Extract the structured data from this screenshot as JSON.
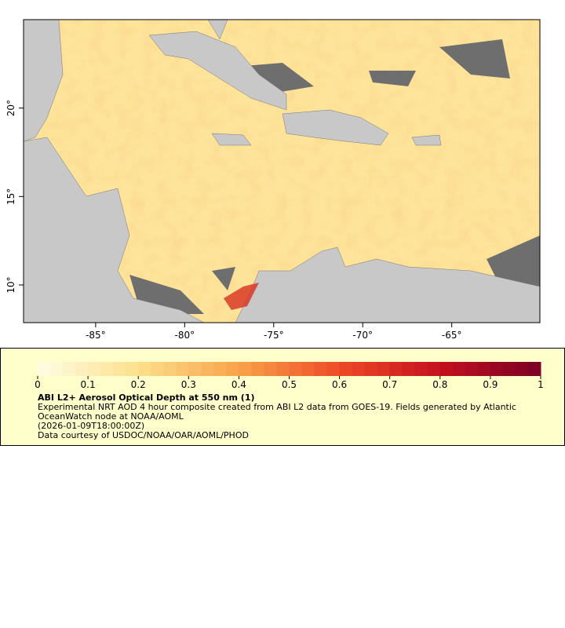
{
  "map": {
    "xlim": [
      -89.05,
      -60.05
    ],
    "ylim": [
      7.87,
      25.0
    ],
    "xticks": [
      {
        "value": -85,
        "label": "-85°"
      },
      {
        "value": -80,
        "label": "-80°"
      },
      {
        "value": -75,
        "label": "-75°"
      },
      {
        "value": -70,
        "label": "-70°"
      },
      {
        "value": -65,
        "label": "-65°"
      }
    ],
    "yticks": [
      {
        "value": 10,
        "label": "10°"
      },
      {
        "value": 15,
        "label": "15°"
      },
      {
        "value": 20,
        "label": "20°"
      }
    ]
  },
  "colorbar": {
    "lim": [
      0,
      1
    ],
    "ticks": [
      0,
      0.1,
      0.2,
      0.3,
      0.4,
      0.5,
      0.6,
      0.7,
      0.8,
      0.9,
      1
    ],
    "colors": [
      "#fffde4",
      "#fde08c",
      "#f9a24a",
      "#ee4a26",
      "#c4101f",
      "#7a0025"
    ],
    "steps": 40
  },
  "legend": {
    "title": "ABI L2+ Aerosol Optical Depth at 550 nm (1)",
    "lines": [
      "Experimental NRT AOD 4 hour composite created from ABI L2 data from GOES-19. Fields generated by Atlantic",
      "OceanWatch node at NOAA/AOML",
      "(2026-01-09T18:00:00Z)",
      "Data courtesy of USDOC/NOAA/OAR/AOML/PHOD"
    ]
  }
}
